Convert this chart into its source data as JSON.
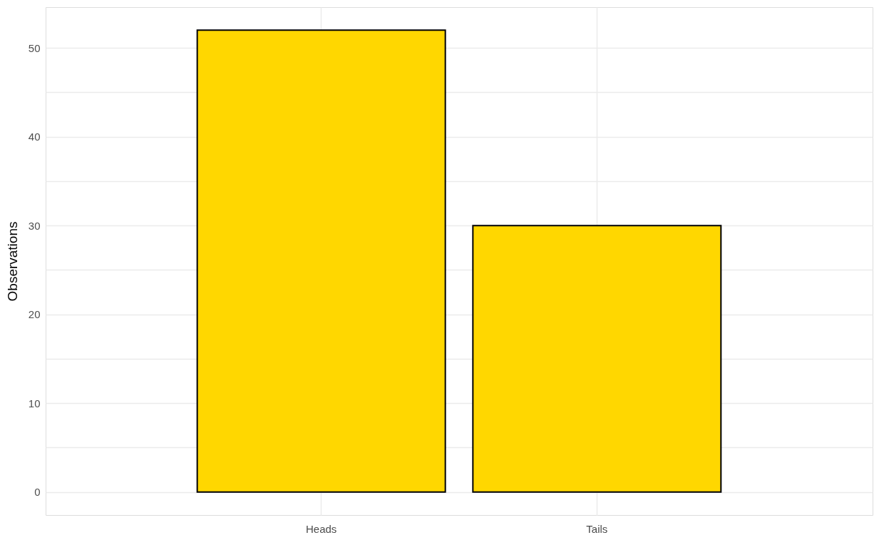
{
  "chart_data": {
    "type": "bar",
    "ylabel": "Observations",
    "categories": [
      "Heads",
      "Tails"
    ],
    "values": [
      52,
      30
    ],
    "color": "#ffd700",
    "ylim": [
      -2.6,
      54.6
    ],
    "yticks": [
      0,
      {
        "value": 5,
        "label": null
      },
      10,
      {
        "value": 15,
        "label": null
      },
      20,
      {
        "value": 25,
        "label": null
      },
      30,
      {
        "value": 35,
        "label": null
      },
      40,
      {
        "value": 45,
        "label": null
      },
      50
    ],
    "grid": true
  }
}
